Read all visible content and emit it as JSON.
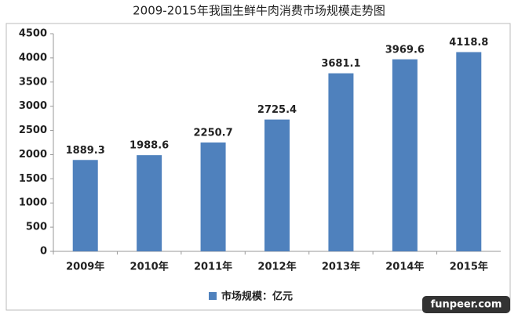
{
  "chart_data": {
    "type": "bar",
    "title": "2009-2015年我国生鲜牛肉消费市场规模走势图",
    "categories": [
      "2009年",
      "2010年",
      "2011年",
      "2012年",
      "2013年",
      "2014年",
      "2015年"
    ],
    "series": [
      {
        "name": "市场规模：亿元",
        "color": "#4f81bd",
        "values": [
          1889.3,
          1988.6,
          2250.7,
          2725.4,
          3681.1,
          3969.6,
          4118.8
        ]
      }
    ],
    "ylim": [
      0,
      4500
    ],
    "yticks": [
      0,
      500,
      1000,
      1500,
      2000,
      2500,
      3000,
      3500,
      4000,
      4500
    ],
    "grid": false,
    "legend": "bottom",
    "watermark": "funpeer.com"
  }
}
